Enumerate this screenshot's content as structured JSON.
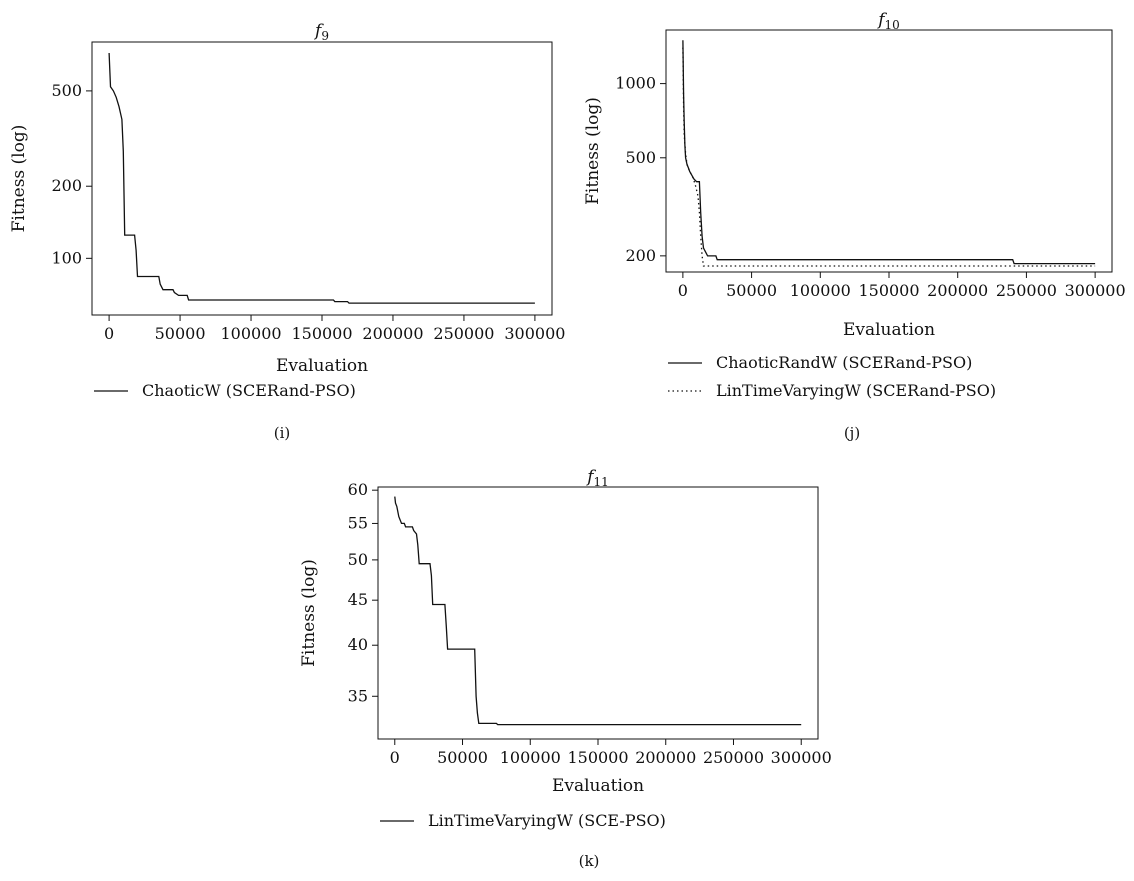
{
  "chart_data": [
    {
      "id": "i",
      "type": "line",
      "title_main": "f",
      "title_sub": "9",
      "xlabel": "Evaluation",
      "ylabel": "Fitness (log)",
      "y_scale": "log",
      "xlim": [
        -5000,
        305000
      ],
      "ylim": [
        58,
        800
      ],
      "xticks": [
        0,
        50000,
        100000,
        150000,
        200000,
        250000,
        300000
      ],
      "yticks": [
        100,
        200,
        500
      ],
      "caption": "(i)",
      "series": [
        {
          "name": "ChaoticW (SCERand-PSO)",
          "style": "solid",
          "points": [
            [
              0,
              720
            ],
            [
              1000,
              520
            ],
            [
              3000,
              500
            ],
            [
              5000,
              470
            ],
            [
              7000,
              430
            ],
            [
              9000,
              380
            ],
            [
              10000,
              280
            ],
            [
              11000,
              125
            ],
            [
              18000,
              125
            ],
            [
              19000,
              108
            ],
            [
              20000,
              84
            ],
            [
              35000,
              84
            ],
            [
              36000,
              78
            ],
            [
              38000,
              74
            ],
            [
              45000,
              74
            ],
            [
              46000,
              72
            ],
            [
              49000,
              70
            ],
            [
              55000,
              70
            ],
            [
              56000,
              67
            ],
            [
              158000,
              67
            ],
            [
              159000,
              66
            ],
            [
              168000,
              66
            ],
            [
              169000,
              65
            ],
            [
              300000,
              65
            ]
          ]
        }
      ]
    },
    {
      "id": "j",
      "type": "line",
      "title_main": "f",
      "title_sub": "10",
      "xlabel": "Evaluation",
      "ylabel": "Fitness (log)",
      "y_scale": "log",
      "xlim": [
        -5000,
        305000
      ],
      "ylim": [
        172,
        1650
      ],
      "xticks": [
        0,
        50000,
        100000,
        150000,
        200000,
        250000,
        300000
      ],
      "yticks": [
        200,
        500,
        1000
      ],
      "caption": "(j)",
      "series": [
        {
          "name": "ChaoticRandW (SCERand-PSO)",
          "style": "solid",
          "points": [
            [
              0,
              1500
            ],
            [
              500,
              900
            ],
            [
              1000,
              700
            ],
            [
              1500,
              560
            ],
            [
              2000,
              500
            ],
            [
              3000,
              470
            ],
            [
              4000,
              455
            ],
            [
              5000,
              440
            ],
            [
              6000,
              430
            ],
            [
              8000,
              410
            ],
            [
              10000,
              400
            ],
            [
              12000,
              400
            ],
            [
              13000,
              300
            ],
            [
              14000,
              240
            ],
            [
              15000,
              215
            ],
            [
              17000,
              205
            ],
            [
              18000,
              200
            ],
            [
              24000,
              200
            ],
            [
              25000,
              193
            ],
            [
              240000,
              193
            ],
            [
              241000,
              186
            ],
            [
              300000,
              186
            ]
          ]
        },
        {
          "name": "LinTimeVaryingW (SCERand-PSO)",
          "style": "dotted",
          "points": [
            [
              0,
              1400
            ],
            [
              500,
              800
            ],
            [
              1000,
              620
            ],
            [
              2000,
              520
            ],
            [
              3000,
              470
            ],
            [
              5000,
              440
            ],
            [
              7000,
              420
            ],
            [
              9000,
              390
            ],
            [
              11000,
              350
            ],
            [
              12000,
              300
            ],
            [
              13000,
              240
            ],
            [
              14000,
              200
            ],
            [
              15000,
              182
            ],
            [
              300000,
              182
            ]
          ]
        }
      ]
    },
    {
      "id": "k",
      "type": "line",
      "title_main": "f",
      "title_sub": "11",
      "xlabel": "Evaluation",
      "ylabel": "Fitness (log)",
      "y_scale": "log",
      "xlim": [
        -5000,
        305000
      ],
      "ylim": [
        31.3,
        60.5
      ],
      "xticks": [
        0,
        50000,
        100000,
        150000,
        200000,
        250000,
        300000
      ],
      "yticks": [
        35,
        40,
        45,
        50,
        55,
        60
      ],
      "caption": "(k)",
      "series": [
        {
          "name": "LinTimeVaryingW (SCE-PSO)",
          "style": "solid",
          "points": [
            [
              0,
              59
            ],
            [
              500,
              58
            ],
            [
              1500,
              57.5
            ],
            [
              3000,
              56
            ],
            [
              5000,
              55
            ],
            [
              7000,
              55
            ],
            [
              8000,
              54.5
            ],
            [
              13000,
              54.5
            ],
            [
              14000,
              54
            ],
            [
              16000,
              53.5
            ],
            [
              17000,
              52
            ],
            [
              18000,
              49.5
            ],
            [
              26000,
              49.5
            ],
            [
              27000,
              48
            ],
            [
              28000,
              44.5
            ],
            [
              37000,
              44.5
            ],
            [
              38000,
              42
            ],
            [
              39000,
              39.6
            ],
            [
              59000,
              39.6
            ],
            [
              60000,
              35
            ],
            [
              61000,
              33.5
            ],
            [
              62000,
              32.6
            ],
            [
              75000,
              32.6
            ],
            [
              76000,
              32.5
            ],
            [
              300000,
              32.5
            ]
          ]
        }
      ]
    }
  ]
}
